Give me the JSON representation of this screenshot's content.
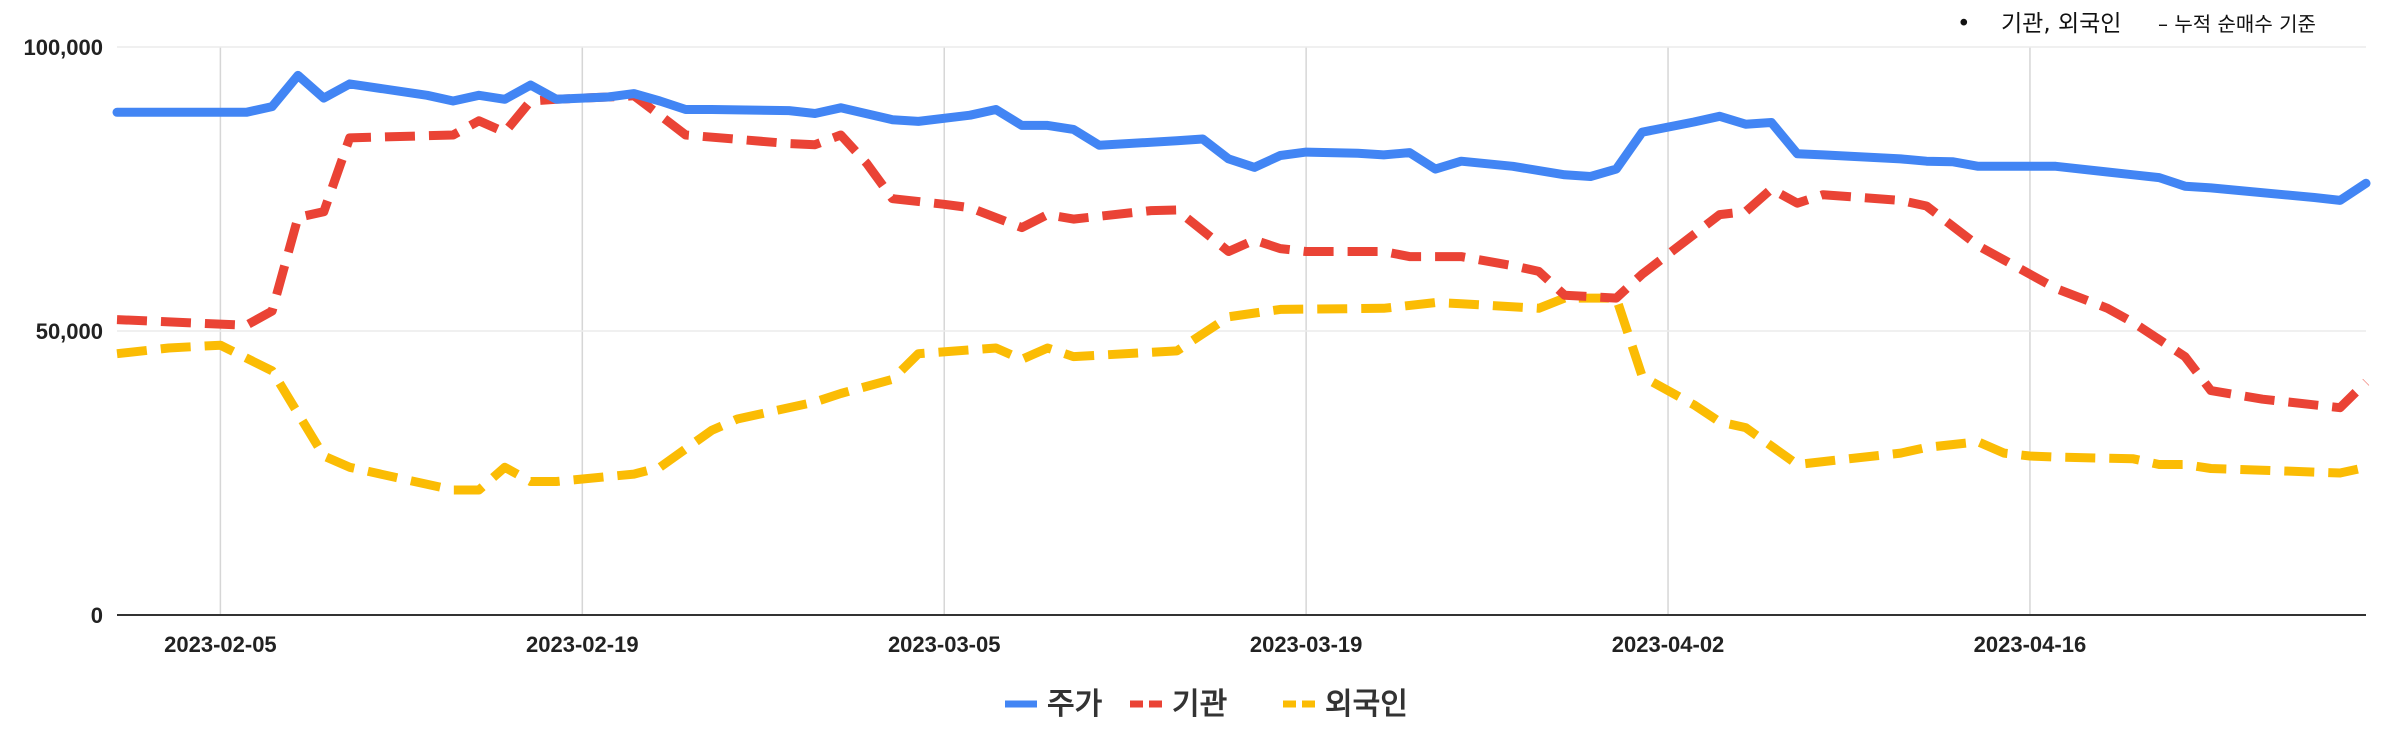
{
  "note": {
    "bullet": "•",
    "main": "기관, 외국인",
    "sub": "– 누적 순매수 기준"
  },
  "chart_data": {
    "type": "line",
    "ylim": [
      0,
      100000
    ],
    "yticks": [
      {
        "value": 0,
        "label": "0"
      },
      {
        "value": 50000,
        "label": "50,000"
      },
      {
        "value": 100000,
        "label": "100,000"
      }
    ],
    "x_start": "2023-02-01",
    "x_end": "2023-04-29",
    "xticks": [
      {
        "date": "2023-02-05",
        "label": "2023-02-05"
      },
      {
        "date": "2023-02-19",
        "label": "2023-02-19"
      },
      {
        "date": "2023-03-05",
        "label": "2023-03-05"
      },
      {
        "date": "2023-03-19",
        "label": "2023-03-19"
      },
      {
        "date": "2023-04-02",
        "label": "2023-04-02"
      },
      {
        "date": "2023-04-16",
        "label": "2023-04-16"
      }
    ],
    "grid": true,
    "legend_position": "bottom",
    "series": [
      {
        "name": "주가",
        "color": "#4285f4",
        "dash": "solid",
        "points": [
          [
            "2023-02-01",
            88500
          ],
          [
            "2023-02-02",
            88500
          ],
          [
            "2023-02-03",
            88500
          ],
          [
            "2023-02-06",
            88500
          ],
          [
            "2023-02-07",
            89500
          ],
          [
            "2023-02-08",
            95000
          ],
          [
            "2023-02-09",
            91000
          ],
          [
            "2023-02-10",
            93500
          ],
          [
            "2023-02-13",
            91500
          ],
          [
            "2023-02-14",
            90500
          ],
          [
            "2023-02-15",
            91500
          ],
          [
            "2023-02-16",
            90800
          ],
          [
            "2023-02-17",
            93300
          ],
          [
            "2023-02-18",
            90800
          ],
          [
            "2023-02-20",
            91200
          ],
          [
            "2023-02-21",
            91800
          ],
          [
            "2023-02-22",
            90500
          ],
          [
            "2023-02-23",
            89000
          ],
          [
            "2023-02-24",
            89000
          ],
          [
            "2023-02-27",
            88800
          ],
          [
            "2023-02-28",
            88300
          ],
          [
            "2023-03-01",
            89300
          ],
          [
            "2023-03-03",
            87200
          ],
          [
            "2023-03-04",
            86900
          ],
          [
            "2023-03-06",
            88000
          ],
          [
            "2023-03-07",
            89000
          ],
          [
            "2023-03-08",
            86200
          ],
          [
            "2023-03-09",
            86200
          ],
          [
            "2023-03-10",
            85500
          ],
          [
            "2023-03-11",
            82700
          ],
          [
            "2023-03-14",
            83500
          ],
          [
            "2023-03-15",
            83800
          ],
          [
            "2023-03-16",
            80300
          ],
          [
            "2023-03-17",
            78800
          ],
          [
            "2023-03-18",
            80900
          ],
          [
            "2023-03-19",
            81500
          ],
          [
            "2023-03-21",
            81300
          ],
          [
            "2023-03-22",
            81000
          ],
          [
            "2023-03-23",
            81400
          ],
          [
            "2023-03-24",
            78500
          ],
          [
            "2023-03-25",
            79900
          ],
          [
            "2023-03-27",
            79000
          ],
          [
            "2023-03-29",
            77500
          ],
          [
            "2023-03-30",
            77200
          ],
          [
            "2023-03-31",
            78500
          ],
          [
            "2023-04-01",
            85000
          ],
          [
            "2023-04-03",
            86800
          ],
          [
            "2023-04-04",
            87800
          ],
          [
            "2023-04-05",
            86400
          ],
          [
            "2023-04-06",
            86700
          ],
          [
            "2023-04-07",
            81200
          ],
          [
            "2023-04-08",
            81000
          ],
          [
            "2023-04-11",
            80300
          ],
          [
            "2023-04-12",
            79900
          ],
          [
            "2023-04-13",
            79800
          ],
          [
            "2023-04-14",
            79000
          ],
          [
            "2023-04-15",
            79000
          ],
          [
            "2023-04-17",
            79000
          ],
          [
            "2023-04-19",
            78000
          ],
          [
            "2023-04-20",
            77500
          ],
          [
            "2023-04-21",
            77000
          ],
          [
            "2023-04-22",
            75500
          ],
          [
            "2023-04-23",
            75200
          ],
          [
            "2023-04-27",
            73500
          ],
          [
            "2023-04-28",
            73000
          ],
          [
            "2023-04-29",
            76000
          ]
        ]
      },
      {
        "name": "기관",
        "color": "#ea4335",
        "dash": "dashed",
        "points": [
          [
            "2023-02-01",
            52000
          ],
          [
            "2023-02-06",
            51000
          ],
          [
            "2023-02-07",
            53500
          ],
          [
            "2023-02-08",
            70000
          ],
          [
            "2023-02-09",
            71000
          ],
          [
            "2023-02-10",
            84000
          ],
          [
            "2023-02-14",
            84500
          ],
          [
            "2023-02-15",
            87000
          ],
          [
            "2023-02-16",
            85000
          ],
          [
            "2023-02-17",
            90500
          ],
          [
            "2023-02-18",
            90800
          ],
          [
            "2023-02-21",
            91400
          ],
          [
            "2023-02-22",
            88000
          ],
          [
            "2023-02-23",
            84500
          ],
          [
            "2023-02-27",
            83000
          ],
          [
            "2023-02-28",
            82800
          ],
          [
            "2023-03-01",
            84500
          ],
          [
            "2023-03-02",
            79500
          ],
          [
            "2023-03-03",
            73300
          ],
          [
            "2023-03-05",
            72300
          ],
          [
            "2023-03-06",
            71700
          ],
          [
            "2023-03-08",
            68200
          ],
          [
            "2023-03-09",
            70500
          ],
          [
            "2023-03-10",
            69700
          ],
          [
            "2023-03-13",
            71200
          ],
          [
            "2023-03-14",
            71300
          ],
          [
            "2023-03-16",
            64000
          ],
          [
            "2023-03-17",
            66000
          ],
          [
            "2023-03-18",
            64500
          ],
          [
            "2023-03-19",
            64000
          ],
          [
            "2023-03-21",
            64000
          ],
          [
            "2023-03-22",
            64000
          ],
          [
            "2023-03-23",
            63100
          ],
          [
            "2023-03-25",
            63100
          ],
          [
            "2023-03-27",
            61500
          ],
          [
            "2023-03-28",
            60500
          ],
          [
            "2023-03-29",
            56300
          ],
          [
            "2023-03-31",
            55800
          ],
          [
            "2023-04-01",
            60000
          ],
          [
            "2023-04-04",
            70500
          ],
          [
            "2023-04-05",
            71000
          ],
          [
            "2023-04-06",
            75000
          ],
          [
            "2023-04-07",
            72500
          ],
          [
            "2023-04-08",
            74000
          ],
          [
            "2023-04-11",
            73000
          ],
          [
            "2023-04-12",
            72000
          ],
          [
            "2023-04-14",
            65000
          ],
          [
            "2023-04-15",
            62500
          ],
          [
            "2023-04-17",
            57500
          ],
          [
            "2023-04-19",
            54000
          ],
          [
            "2023-04-20",
            51500
          ],
          [
            "2023-04-22",
            45500
          ],
          [
            "2023-04-23",
            39500
          ],
          [
            "2023-04-25",
            38000
          ],
          [
            "2023-04-28",
            36500
          ],
          [
            "2023-04-29",
            41000
          ]
        ]
      },
      {
        "name": "외국인",
        "color": "#fbbc04",
        "dash": "dashed",
        "points": [
          [
            "2023-02-01",
            46000
          ],
          [
            "2023-02-03",
            47000
          ],
          [
            "2023-02-05",
            47500
          ],
          [
            "2023-02-07",
            43000
          ],
          [
            "2023-02-09",
            28000
          ],
          [
            "2023-02-10",
            26000
          ],
          [
            "2023-02-14",
            22000
          ],
          [
            "2023-02-15",
            22000
          ],
          [
            "2023-02-16",
            26000
          ],
          [
            "2023-02-17",
            23500
          ],
          [
            "2023-02-18",
            23500
          ],
          [
            "2023-02-21",
            24800
          ],
          [
            "2023-02-22",
            26000
          ],
          [
            "2023-02-24",
            32500
          ],
          [
            "2023-02-25",
            34500
          ],
          [
            "2023-02-28",
            37500
          ],
          [
            "2023-03-01",
            39000
          ],
          [
            "2023-03-03",
            41500
          ],
          [
            "2023-03-04",
            46000
          ],
          [
            "2023-03-07",
            47000
          ],
          [
            "2023-03-08",
            45000
          ],
          [
            "2023-03-09",
            47000
          ],
          [
            "2023-03-10",
            45500
          ],
          [
            "2023-03-14",
            46500
          ],
          [
            "2023-03-16",
            52500
          ],
          [
            "2023-03-18",
            53800
          ],
          [
            "2023-03-22",
            54000
          ],
          [
            "2023-03-24",
            55000
          ],
          [
            "2023-03-25",
            54800
          ],
          [
            "2023-03-28",
            54000
          ],
          [
            "2023-03-29",
            55800
          ],
          [
            "2023-03-31",
            55800
          ],
          [
            "2023-04-01",
            42000
          ],
          [
            "2023-04-03",
            37000
          ],
          [
            "2023-04-04",
            34000
          ],
          [
            "2023-04-05",
            33000
          ],
          [
            "2023-04-07",
            26500
          ],
          [
            "2023-04-08",
            27000
          ],
          [
            "2023-04-11",
            28500
          ],
          [
            "2023-04-12",
            29500
          ],
          [
            "2023-04-14",
            30500
          ],
          [
            "2023-04-15",
            28500
          ],
          [
            "2023-04-16",
            28000
          ],
          [
            "2023-04-17",
            27800
          ],
          [
            "2023-04-20",
            27500
          ],
          [
            "2023-04-21",
            26500
          ],
          [
            "2023-04-22",
            26500
          ],
          [
            "2023-04-23",
            25800
          ],
          [
            "2023-04-25",
            25500
          ],
          [
            "2023-04-28",
            25000
          ],
          [
            "2023-04-29",
            26000
          ]
        ]
      }
    ]
  }
}
